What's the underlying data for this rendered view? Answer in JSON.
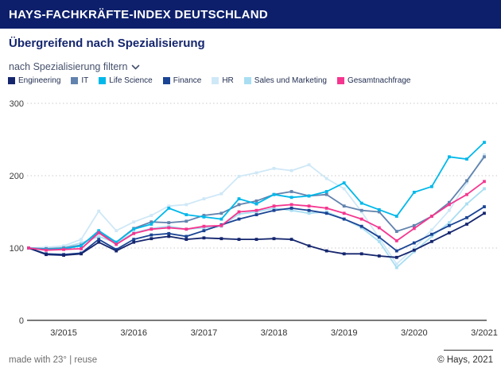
{
  "header": {
    "title": "HAYS-FACHKRÄFTE-INDEX DEUTSCHLAND"
  },
  "subtitle": "Übergreifend nach Spezialisierung",
  "filter": {
    "label": "nach Spezialisierung filtern",
    "chevron_icon": "chevron-down"
  },
  "footer": {
    "left": "made with 23° | reuse",
    "right": "© Hays, 2021"
  },
  "colors": {
    "header_bar": "#0d1f6b",
    "title_text": "#ffffff",
    "subtitle_text": "#15266e",
    "grid": "#c9c9c9",
    "axis": "#4d4d4d"
  },
  "chart_data": {
    "type": "line",
    "title": "Übergreifend nach Spezialisierung",
    "x_tick_labels": [
      "3/2015",
      "3/2016",
      "3/2017",
      "3/2018",
      "3/2019",
      "3/2020",
      "3/2021"
    ],
    "x_tick_indices": [
      2,
      6,
      10,
      14,
      18,
      22,
      26
    ],
    "points_per_series": 27,
    "x_cadence": "quarterly",
    "y_ticks": [
      0,
      100,
      200,
      300
    ],
    "ylim": [
      0,
      300
    ],
    "grid": "horizontal dotted at 100/200/300, solid baseline at 0",
    "legend_position": "top",
    "draw_order": [
      4,
      5,
      1,
      3,
      0,
      2,
      6
    ],
    "series": [
      {
        "key": "engineering",
        "name": "Engineering",
        "color": "#15266e",
        "values": [
          100,
          91,
          90,
          92,
          108,
          96,
          108,
          113,
          116,
          112,
          114,
          113,
          112,
          112,
          113,
          112,
          103,
          96,
          92,
          92,
          89,
          87,
          97,
          109,
          121,
          133,
          148
        ]
      },
      {
        "key": "it",
        "name": "IT",
        "color": "#6283ae",
        "values": [
          100,
          99,
          100,
          104,
          122,
          108,
          127,
          136,
          135,
          137,
          145,
          148,
          160,
          165,
          174,
          178,
          172,
          174,
          158,
          152,
          150,
          123,
          131,
          144,
          163,
          193,
          226
        ]
      },
      {
        "key": "life-science",
        "name": "Life Science",
        "color": "#00b8ea",
        "values": [
          100,
          98,
          99,
          103,
          124,
          108,
          126,
          133,
          155,
          146,
          143,
          140,
          168,
          161,
          174,
          170,
          172,
          178,
          190,
          162,
          153,
          144,
          177,
          185,
          226,
          223,
          246
        ]
      },
      {
        "key": "finance",
        "name": "Finance",
        "color": "#1a4494",
        "values": [
          100,
          92,
          91,
          93,
          112,
          98,
          112,
          118,
          120,
          116,
          124,
          132,
          140,
          146,
          152,
          155,
          152,
          148,
          140,
          130,
          115,
          96,
          107,
          119,
          131,
          142,
          157
        ]
      },
      {
        "key": "hr",
        "name": "HR",
        "color": "#cfe8f7",
        "values": [
          100,
          101,
          103,
          112,
          151,
          124,
          136,
          145,
          158,
          160,
          168,
          175,
          199,
          204,
          210,
          207,
          215,
          196,
          182,
          150,
          114,
          78,
          100,
          125,
          152,
          190,
          229
        ]
      },
      {
        "key": "sales-und-marketing",
        "name": "Sales und Marketing",
        "color": "#a9def2",
        "values": [
          100,
          99,
          101,
          107,
          116,
          107,
          121,
          127,
          130,
          126,
          128,
          130,
          147,
          150,
          155,
          152,
          148,
          150,
          140,
          128,
          109,
          73,
          95,
          116,
          135,
          161,
          182
        ]
      },
      {
        "key": "gesamtnachfrage",
        "name": "Gesamtnachfrage",
        "color": "#f5368f",
        "values": [
          100,
          97,
          98,
          99,
          121,
          105,
          120,
          126,
          128,
          126,
          130,
          131,
          150,
          152,
          158,
          160,
          158,
          155,
          148,
          140,
          128,
          110,
          127,
          144,
          160,
          174,
          192
        ]
      }
    ]
  }
}
